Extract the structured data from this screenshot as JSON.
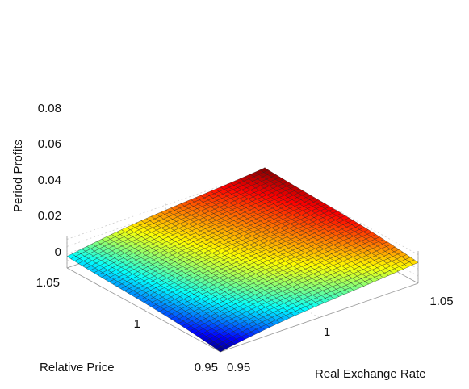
{
  "chart_data": {
    "type": "surface",
    "title": "",
    "zlabel": "Period Profits",
    "xlabel": "Real Exchange Rate",
    "ylabel": "Relative Price",
    "x_range": [
      0.95,
      1.05
    ],
    "y_range": [
      0.95,
      1.05
    ],
    "z_range": [
      0,
      0.09
    ],
    "x_ticks": [
      "0.95",
      "1",
      "1.05"
    ],
    "y_ticks": [
      "0.95",
      "1",
      "1.05"
    ],
    "z_ticks": [
      "0",
      "0.02",
      "0.04",
      "0.06",
      "0.08"
    ],
    "corner_values": {
      "x0.95_y0.95": 0.0,
      "x1.05_y0.95": 0.058,
      "x0.95_y1.05": 0.032,
      "x1.05_y1.05": 0.088
    },
    "grid": true,
    "colormap": "jet"
  }
}
